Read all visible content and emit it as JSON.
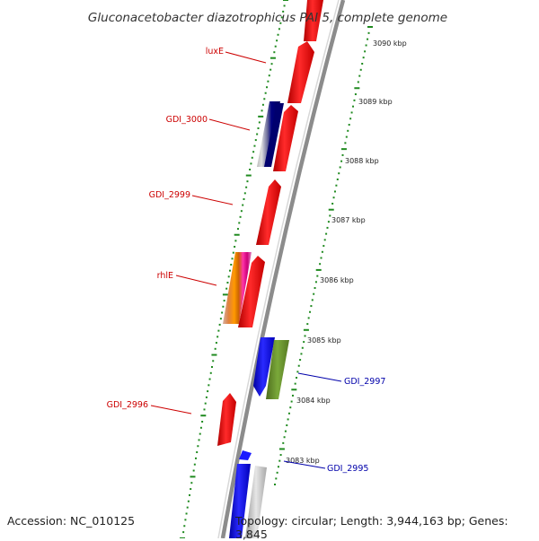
{
  "title": "Gluconacetobacter diazotrophicus PAI 5, complete genome",
  "accession_text": "Accession: NC_010125",
  "topology_text": "Topology: circular; Length: 3,944,163 bp; Genes: 3,845",
  "colors": {
    "forward_cds": "#ff0000",
    "reverse_cds": "#0000ff",
    "tick_marks": "#1f8a1f",
    "backbone": "#8c8c8c",
    "label_forward": "#cc0000",
    "label_reverse": "#0000aa"
  },
  "kbp_ticks": [
    "3090 kbp",
    "3089 kbp",
    "3088 kbp",
    "3087 kbp",
    "3086 kbp",
    "3085 kbp",
    "3084 kbp",
    "3083 kbp"
  ],
  "gene_labels": [
    {
      "text": "luxE",
      "strand": "forward"
    },
    {
      "text": "GDI_3000",
      "strand": "forward"
    },
    {
      "text": "GDI_2999",
      "strand": "forward"
    },
    {
      "text": "rhlE",
      "strand": "forward"
    },
    {
      "text": "GDI_2997",
      "strand": "reverse"
    },
    {
      "text": "GDI_2996",
      "strand": "forward"
    },
    {
      "text": "GDI_2995",
      "strand": "reverse"
    }
  ]
}
